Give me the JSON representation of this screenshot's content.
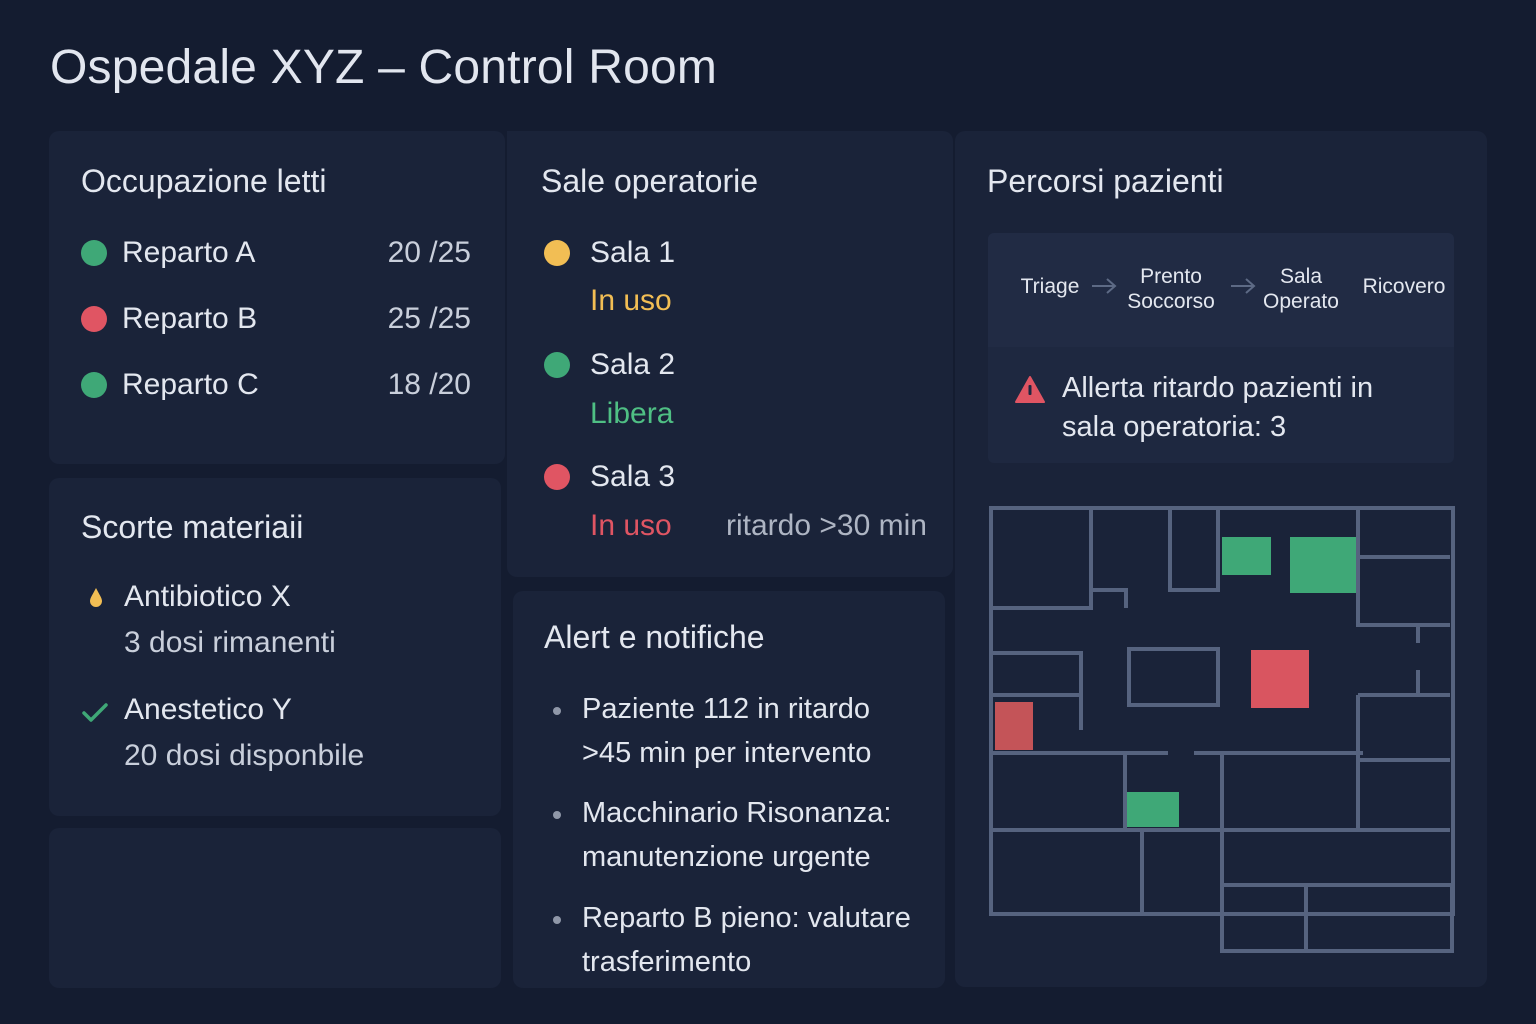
{
  "header": {
    "title": "Ospedale XYZ – Control Room"
  },
  "beds": {
    "title": "Occupazione letti",
    "items": [
      {
        "name": "Reparto A",
        "count": "20 /25",
        "color": "#3fa877"
      },
      {
        "name": "Reparto B",
        "count": "25 /25",
        "color": "#e05563"
      },
      {
        "name": "Reparto C",
        "count": "18 /20",
        "color": "#3fa877"
      }
    ]
  },
  "or_rooms": {
    "title": "Sale operatorie",
    "items": [
      {
        "name": "Sala 1",
        "status": "In uso",
        "status_color": "#f2be54",
        "dot_color": "#f2be54",
        "note": ""
      },
      {
        "name": "Sala 2",
        "status": "Libera",
        "status_color": "#4fbf84",
        "dot_color": "#3fa877",
        "note": ""
      },
      {
        "name": "Sala 3",
        "status": "In uso",
        "status_color": "#e05563",
        "dot_color": "#e05563",
        "note": "ritardo >30 min"
      }
    ]
  },
  "pathways": {
    "title": "Percorsi pazienti",
    "steps": [
      "Triage",
      "Prento Soccorso",
      "Sala Operato",
      "Ricovero"
    ],
    "alert": "Allerta ritardo pazienti in sala operatoria: 3",
    "alert_icon": "warning-triangle-icon"
  },
  "supplies": {
    "title": "Scorte materiaii",
    "items": [
      {
        "name": "Antibiotico X",
        "detail": "3 dosi rimanenti",
        "icon": "drop-icon",
        "icon_color": "#f2be54"
      },
      {
        "name": "Anestetico Y",
        "detail": "20 dosi disponbile",
        "icon": "check-icon",
        "icon_color": "#3fa877"
      }
    ]
  },
  "alerts": {
    "title": "Alert e notifiche",
    "items": [
      "Paziente 112 in ritardo >45 min per intervento",
      "Macchinario Risonanza: manutenzione urgente",
      "Reparto B pieno: valutare trasferimento"
    ]
  },
  "colors": {
    "background": "#141c30",
    "panel": "#1a2339",
    "ok": "#3fa877",
    "warning": "#f2be54",
    "critical": "#e05563"
  }
}
